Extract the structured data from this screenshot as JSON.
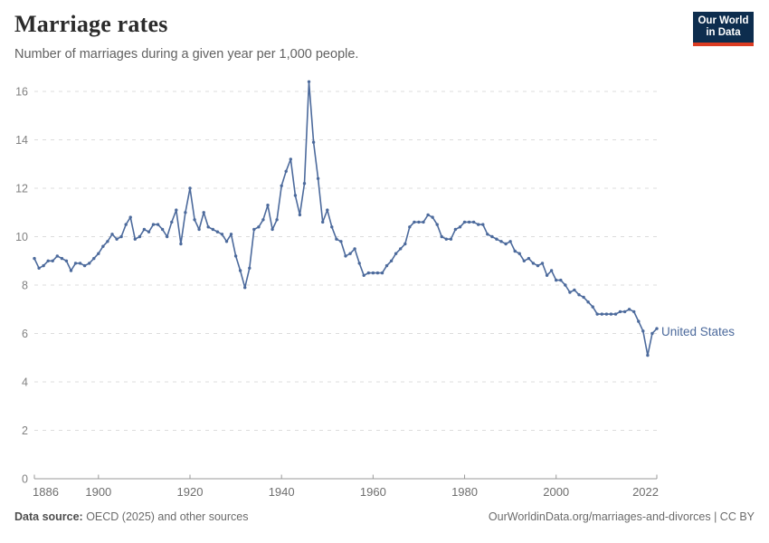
{
  "header": {
    "title": "Marriage rates",
    "subtitle": "Number of marriages during a given year per 1,000 people."
  },
  "logo": {
    "line1": "Our World",
    "line2": "in Data",
    "bg_color": "#0d2d4e",
    "accent_color": "#dc3c22"
  },
  "chart_data": {
    "type": "line",
    "title": "Marriage rates",
    "xlabel": "",
    "ylabel": "",
    "xlim": [
      1886,
      2022
    ],
    "ylim": [
      0,
      16
    ],
    "xticks": [
      1886,
      1900,
      1920,
      1940,
      1960,
      1980,
      2000,
      2022
    ],
    "yticks": [
      0,
      2,
      4,
      6,
      8,
      10,
      12,
      14,
      16
    ],
    "grid": "horizontal-dashed",
    "gridline_color": "#dcdcdc",
    "axis_color": "#999999",
    "tick_label_color": "#828282",
    "series": [
      {
        "name": "United States",
        "color": "#4C6A9C",
        "start_year": 1886,
        "values": [
          9.1,
          8.7,
          8.8,
          9.0,
          9.0,
          9.2,
          9.1,
          9.0,
          8.6,
          8.9,
          8.9,
          8.8,
          8.9,
          9.1,
          9.3,
          9.6,
          9.8,
          10.1,
          9.9,
          10.0,
          10.5,
          10.8,
          9.9,
          10.0,
          10.3,
          10.2,
          10.5,
          10.5,
          10.3,
          10.0,
          10.6,
          11.1,
          9.7,
          11.0,
          12.0,
          10.7,
          10.3,
          11.0,
          10.4,
          10.3,
          10.2,
          10.1,
          9.8,
          10.1,
          9.2,
          8.6,
          7.9,
          8.7,
          10.3,
          10.4,
          10.7,
          11.3,
          10.3,
          10.7,
          12.1,
          12.7,
          13.2,
          11.7,
          10.9,
          12.2,
          16.4,
          13.9,
          12.4,
          10.6,
          11.1,
          10.4,
          9.9,
          9.8,
          9.2,
          9.3,
          9.5,
          8.9,
          8.4,
          8.5,
          8.5,
          8.5,
          8.5,
          8.8,
          9.0,
          9.3,
          9.5,
          9.7,
          10.4,
          10.6,
          10.6,
          10.6,
          10.9,
          10.8,
          10.5,
          10.0,
          9.9,
          9.9,
          10.3,
          10.4,
          10.6,
          10.6,
          10.6,
          10.5,
          10.5,
          10.1,
          10.0,
          9.9,
          9.8,
          9.7,
          9.8,
          9.4,
          9.3,
          9.0,
          9.1,
          8.9,
          8.8,
          8.9,
          8.4,
          8.6,
          8.2,
          8.2,
          8.0,
          7.7,
          7.8,
          7.6,
          7.5,
          7.3,
          7.1,
          6.8,
          6.8,
          6.8,
          6.8,
          6.8,
          6.9,
          6.9,
          7.0,
          6.9,
          6.5,
          6.1,
          5.1,
          6.0,
          6.2
        ]
      }
    ],
    "end_label": "United States"
  },
  "footer": {
    "source_label": "Data source:",
    "source_text": " OECD (2025) and other sources",
    "right_text": "OurWorldinData.org/marriages-and-divorces | CC BY"
  }
}
